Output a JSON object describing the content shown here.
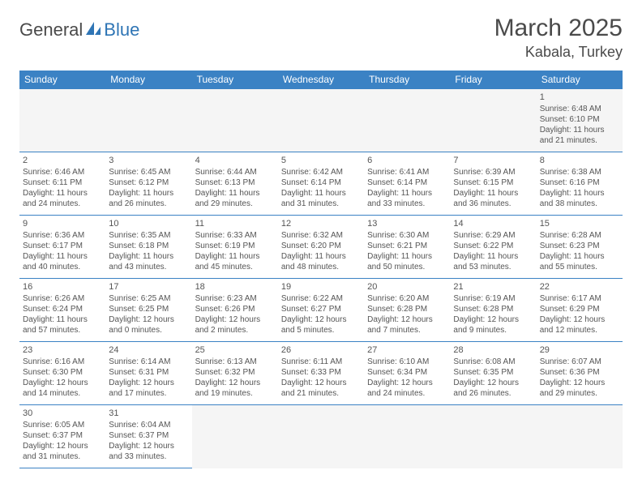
{
  "logo": {
    "text_general": "General",
    "text_blue": "Blue"
  },
  "title": "March 2025",
  "location": "Kabala, Turkey",
  "header_bg": "#3b82c4",
  "header_fg": "#ffffff",
  "border_color": "#3b82c4",
  "empty_bg": "#f5f5f5",
  "text_color": "#555555",
  "days_of_week": [
    "Sunday",
    "Monday",
    "Tuesday",
    "Wednesday",
    "Thursday",
    "Friday",
    "Saturday"
  ],
  "weeks": [
    [
      null,
      null,
      null,
      null,
      null,
      null,
      {
        "n": "1",
        "sr": "Sunrise: 6:48 AM",
        "ss": "Sunset: 6:10 PM",
        "dl": "Daylight: 11 hours and 21 minutes."
      }
    ],
    [
      {
        "n": "2",
        "sr": "Sunrise: 6:46 AM",
        "ss": "Sunset: 6:11 PM",
        "dl": "Daylight: 11 hours and 24 minutes."
      },
      {
        "n": "3",
        "sr": "Sunrise: 6:45 AM",
        "ss": "Sunset: 6:12 PM",
        "dl": "Daylight: 11 hours and 26 minutes."
      },
      {
        "n": "4",
        "sr": "Sunrise: 6:44 AM",
        "ss": "Sunset: 6:13 PM",
        "dl": "Daylight: 11 hours and 29 minutes."
      },
      {
        "n": "5",
        "sr": "Sunrise: 6:42 AM",
        "ss": "Sunset: 6:14 PM",
        "dl": "Daylight: 11 hours and 31 minutes."
      },
      {
        "n": "6",
        "sr": "Sunrise: 6:41 AM",
        "ss": "Sunset: 6:14 PM",
        "dl": "Daylight: 11 hours and 33 minutes."
      },
      {
        "n": "7",
        "sr": "Sunrise: 6:39 AM",
        "ss": "Sunset: 6:15 PM",
        "dl": "Daylight: 11 hours and 36 minutes."
      },
      {
        "n": "8",
        "sr": "Sunrise: 6:38 AM",
        "ss": "Sunset: 6:16 PM",
        "dl": "Daylight: 11 hours and 38 minutes."
      }
    ],
    [
      {
        "n": "9",
        "sr": "Sunrise: 6:36 AM",
        "ss": "Sunset: 6:17 PM",
        "dl": "Daylight: 11 hours and 40 minutes."
      },
      {
        "n": "10",
        "sr": "Sunrise: 6:35 AM",
        "ss": "Sunset: 6:18 PM",
        "dl": "Daylight: 11 hours and 43 minutes."
      },
      {
        "n": "11",
        "sr": "Sunrise: 6:33 AM",
        "ss": "Sunset: 6:19 PM",
        "dl": "Daylight: 11 hours and 45 minutes."
      },
      {
        "n": "12",
        "sr": "Sunrise: 6:32 AM",
        "ss": "Sunset: 6:20 PM",
        "dl": "Daylight: 11 hours and 48 minutes."
      },
      {
        "n": "13",
        "sr": "Sunrise: 6:30 AM",
        "ss": "Sunset: 6:21 PM",
        "dl": "Daylight: 11 hours and 50 minutes."
      },
      {
        "n": "14",
        "sr": "Sunrise: 6:29 AM",
        "ss": "Sunset: 6:22 PM",
        "dl": "Daylight: 11 hours and 53 minutes."
      },
      {
        "n": "15",
        "sr": "Sunrise: 6:28 AM",
        "ss": "Sunset: 6:23 PM",
        "dl": "Daylight: 11 hours and 55 minutes."
      }
    ],
    [
      {
        "n": "16",
        "sr": "Sunrise: 6:26 AM",
        "ss": "Sunset: 6:24 PM",
        "dl": "Daylight: 11 hours and 57 minutes."
      },
      {
        "n": "17",
        "sr": "Sunrise: 6:25 AM",
        "ss": "Sunset: 6:25 PM",
        "dl": "Daylight: 12 hours and 0 minutes."
      },
      {
        "n": "18",
        "sr": "Sunrise: 6:23 AM",
        "ss": "Sunset: 6:26 PM",
        "dl": "Daylight: 12 hours and 2 minutes."
      },
      {
        "n": "19",
        "sr": "Sunrise: 6:22 AM",
        "ss": "Sunset: 6:27 PM",
        "dl": "Daylight: 12 hours and 5 minutes."
      },
      {
        "n": "20",
        "sr": "Sunrise: 6:20 AM",
        "ss": "Sunset: 6:28 PM",
        "dl": "Daylight: 12 hours and 7 minutes."
      },
      {
        "n": "21",
        "sr": "Sunrise: 6:19 AM",
        "ss": "Sunset: 6:28 PM",
        "dl": "Daylight: 12 hours and 9 minutes."
      },
      {
        "n": "22",
        "sr": "Sunrise: 6:17 AM",
        "ss": "Sunset: 6:29 PM",
        "dl": "Daylight: 12 hours and 12 minutes."
      }
    ],
    [
      {
        "n": "23",
        "sr": "Sunrise: 6:16 AM",
        "ss": "Sunset: 6:30 PM",
        "dl": "Daylight: 12 hours and 14 minutes."
      },
      {
        "n": "24",
        "sr": "Sunrise: 6:14 AM",
        "ss": "Sunset: 6:31 PM",
        "dl": "Daylight: 12 hours and 17 minutes."
      },
      {
        "n": "25",
        "sr": "Sunrise: 6:13 AM",
        "ss": "Sunset: 6:32 PM",
        "dl": "Daylight: 12 hours and 19 minutes."
      },
      {
        "n": "26",
        "sr": "Sunrise: 6:11 AM",
        "ss": "Sunset: 6:33 PM",
        "dl": "Daylight: 12 hours and 21 minutes."
      },
      {
        "n": "27",
        "sr": "Sunrise: 6:10 AM",
        "ss": "Sunset: 6:34 PM",
        "dl": "Daylight: 12 hours and 24 minutes."
      },
      {
        "n": "28",
        "sr": "Sunrise: 6:08 AM",
        "ss": "Sunset: 6:35 PM",
        "dl": "Daylight: 12 hours and 26 minutes."
      },
      {
        "n": "29",
        "sr": "Sunrise: 6:07 AM",
        "ss": "Sunset: 6:36 PM",
        "dl": "Daylight: 12 hours and 29 minutes."
      }
    ],
    [
      {
        "n": "30",
        "sr": "Sunrise: 6:05 AM",
        "ss": "Sunset: 6:37 PM",
        "dl": "Daylight: 12 hours and 31 minutes."
      },
      {
        "n": "31",
        "sr": "Sunrise: 6:04 AM",
        "ss": "Sunset: 6:37 PM",
        "dl": "Daylight: 12 hours and 33 minutes."
      },
      null,
      null,
      null,
      null,
      null
    ]
  ]
}
